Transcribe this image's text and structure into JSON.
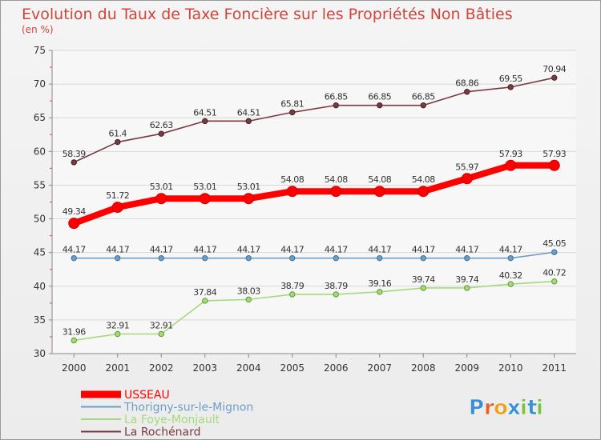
{
  "chart_data": {
    "type": "line",
    "title": "Evolution du Taux de Taxe Foncière sur les Propriétés Non Bâties",
    "subtitle": "(en %)",
    "xlabel": "",
    "ylabel": "",
    "ylim": [
      30,
      75
    ],
    "yticks": [
      30,
      35,
      40,
      45,
      50,
      55,
      60,
      65,
      70,
      75
    ],
    "categories": [
      "2000",
      "2001",
      "2002",
      "2003",
      "2004",
      "2005",
      "2006",
      "2007",
      "2008",
      "2009",
      "2010",
      "2011"
    ],
    "legend_position": "bottom-left",
    "series": [
      {
        "name": "USSEAU",
        "color": "#ff0000",
        "values": [
          49.34,
          51.72,
          53.01,
          53.01,
          53.01,
          54.08,
          54.08,
          54.08,
          54.08,
          55.97,
          57.93,
          57.93
        ],
        "labels": [
          "49.34",
          "51.72",
          "53.01",
          "53.01",
          "53.01",
          "54.08",
          "54.08",
          "54.08",
          "54.08",
          "55.97",
          "57.93",
          "57.93"
        ]
      },
      {
        "name": "Thorigny-sur-le-Mignon",
        "color": "#6d9ec8",
        "values": [
          44.17,
          44.17,
          44.17,
          44.17,
          44.17,
          44.17,
          44.17,
          44.17,
          44.17,
          44.17,
          44.17,
          45.05
        ],
        "labels": [
          "44.17",
          "44.17",
          "44.17",
          "44.17",
          "44.17",
          "44.17",
          "44.17",
          "44.17",
          "44.17",
          "44.17",
          "44.17",
          "45.05"
        ]
      },
      {
        "name": "La Foye-Monjault",
        "color": "#a6d97a",
        "values": [
          31.96,
          32.91,
          32.91,
          37.84,
          38.03,
          38.79,
          38.79,
          39.16,
          39.74,
          39.74,
          40.32,
          40.72
        ],
        "labels": [
          "31.96",
          "32.91",
          "32.91",
          "37.84",
          "38.03",
          "38.79",
          "38.79",
          "39.16",
          "39.74",
          "39.74",
          "40.32",
          "40.72"
        ]
      },
      {
        "name": "La Rochénard",
        "color": "#7a3a42",
        "values": [
          58.39,
          61.4,
          62.63,
          64.51,
          64.51,
          65.81,
          66.85,
          66.85,
          66.85,
          68.86,
          69.55,
          70.94
        ],
        "labels": [
          "58.39",
          "61.4",
          "62.63",
          "64.51",
          "64.51",
          "65.81",
          "66.85",
          "66.85",
          "66.85",
          "68.86",
          "69.55",
          "70.94"
        ]
      }
    ]
  },
  "branding": {
    "logo_text": "Proxiti",
    "logo_letters": [
      "P",
      "r",
      "o",
      "x",
      "i",
      "t",
      "i"
    ],
    "logo_colors": [
      "#3a8fd6",
      "#e0622a",
      "#f0a020",
      "#3a8fd6",
      "#7cc242",
      "#3a8fd6",
      "#7cc242"
    ]
  }
}
